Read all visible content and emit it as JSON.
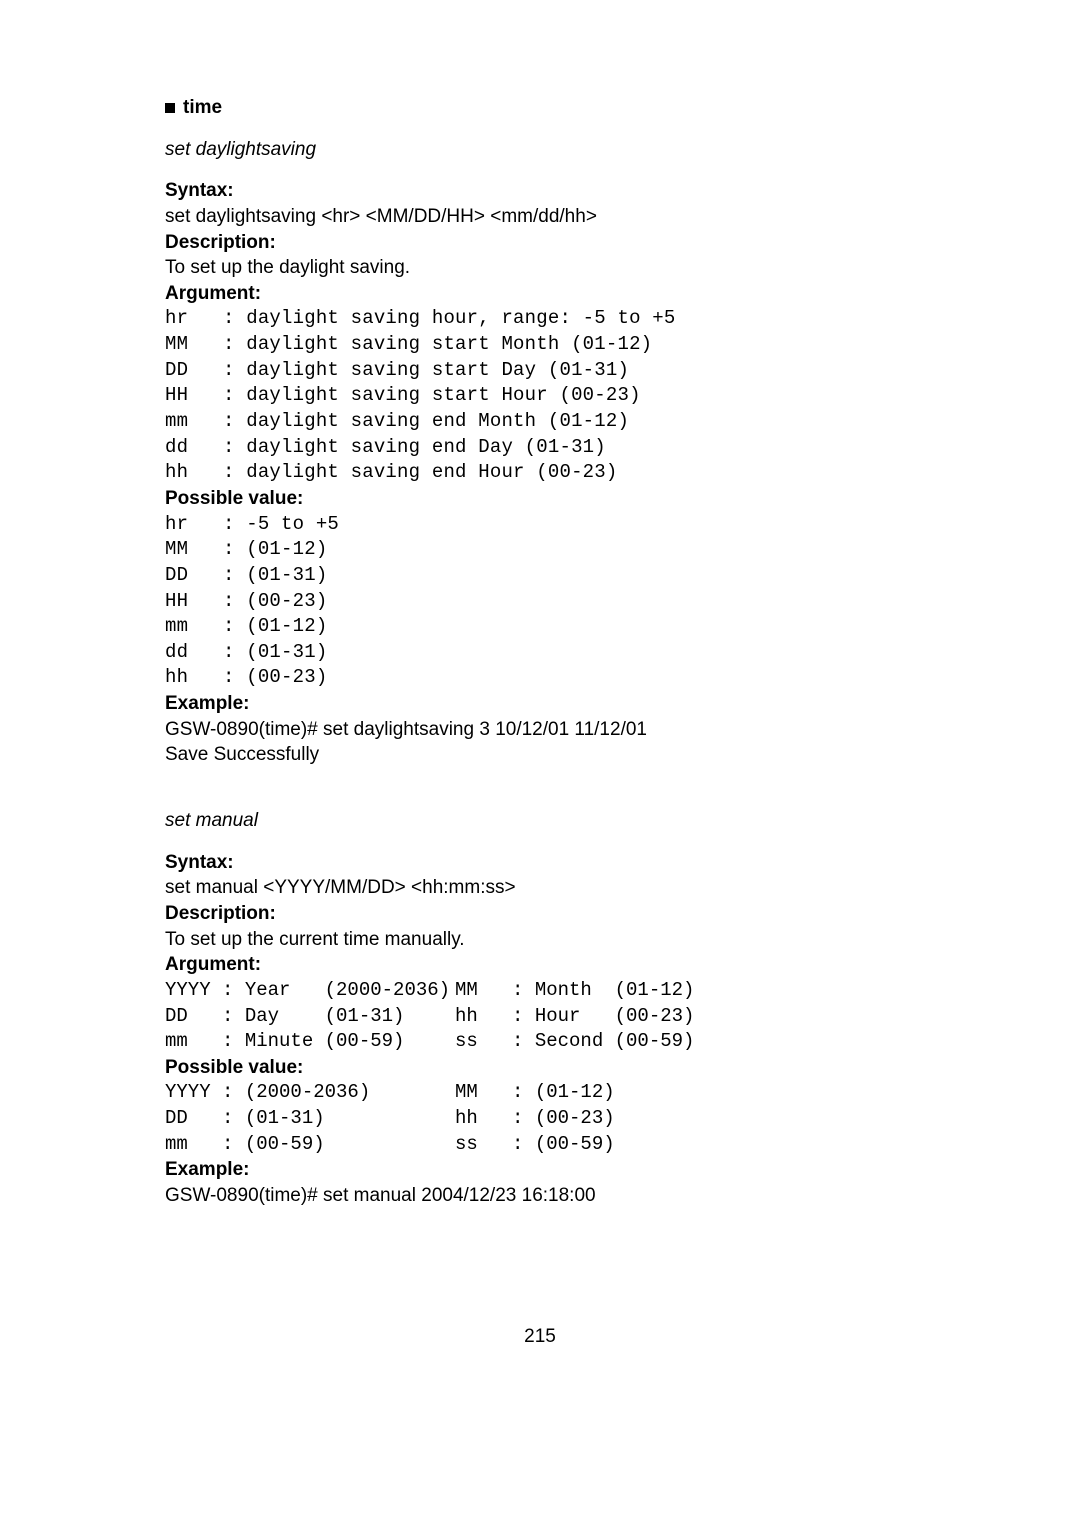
{
  "header": {
    "title": "time"
  },
  "cmd1": {
    "name": "set daylightsaving",
    "syntax_label": "Syntax:",
    "syntax_text": "set daylightsaving <hr> <MM/DD/HH> <mm/dd/hh>",
    "desc_label": "Description:",
    "desc_text": "To set up the daylight saving.",
    "arg_label": "Argument:",
    "args": "hr   : daylight saving hour, range: -5 to +5\nMM   : daylight saving start Month (01-12)\nDD   : daylight saving start Day (01-31)\nHH   : daylight saving start Hour (00-23)\nmm   : daylight saving end Month (01-12)\ndd   : daylight saving end Day (01-31)\nhh   : daylight saving end Hour (00-23)",
    "pv_label": "Possible value:",
    "pv": "hr   : -5 to +5\nMM   : (01-12)\nDD   : (01-31)\nHH   : (00-23)\nmm   : (01-12)\ndd   : (01-31)\nhh   : (00-23)",
    "ex_label": "Example:",
    "ex1": "GSW-0890(time)# set daylightsaving 3 10/12/01 11/12/01",
    "ex2": "Save Successfully"
  },
  "cmd2": {
    "name": "set manual",
    "syntax_label": "Syntax:",
    "syntax_text": "set manual <YYYY/MM/DD> <hh:mm:ss>",
    "desc_label": "Description:",
    "desc_text": "To set up the current time manually.",
    "arg_label": "Argument:",
    "args_left": "YYYY : Year   (2000-2036)\nDD   : Day    (01-31)\nmm   : Minute (00-59)",
    "args_right": "MM   : Month  (01-12)\nhh   : Hour   (00-23)\nss   : Second (00-59)",
    "pv_label": "Possible value:",
    "pv_left": "YYYY : (2000-2036)\nDD   : (01-31)\nmm   : (00-59)",
    "pv_right": "MM   : (01-12)\nhh   : (00-23)\nss   : (00-59)",
    "ex_label": "Example:",
    "ex1": "GSW-0890(time)# set manual 2004/12/23 16:18:00"
  },
  "page_number": "215"
}
